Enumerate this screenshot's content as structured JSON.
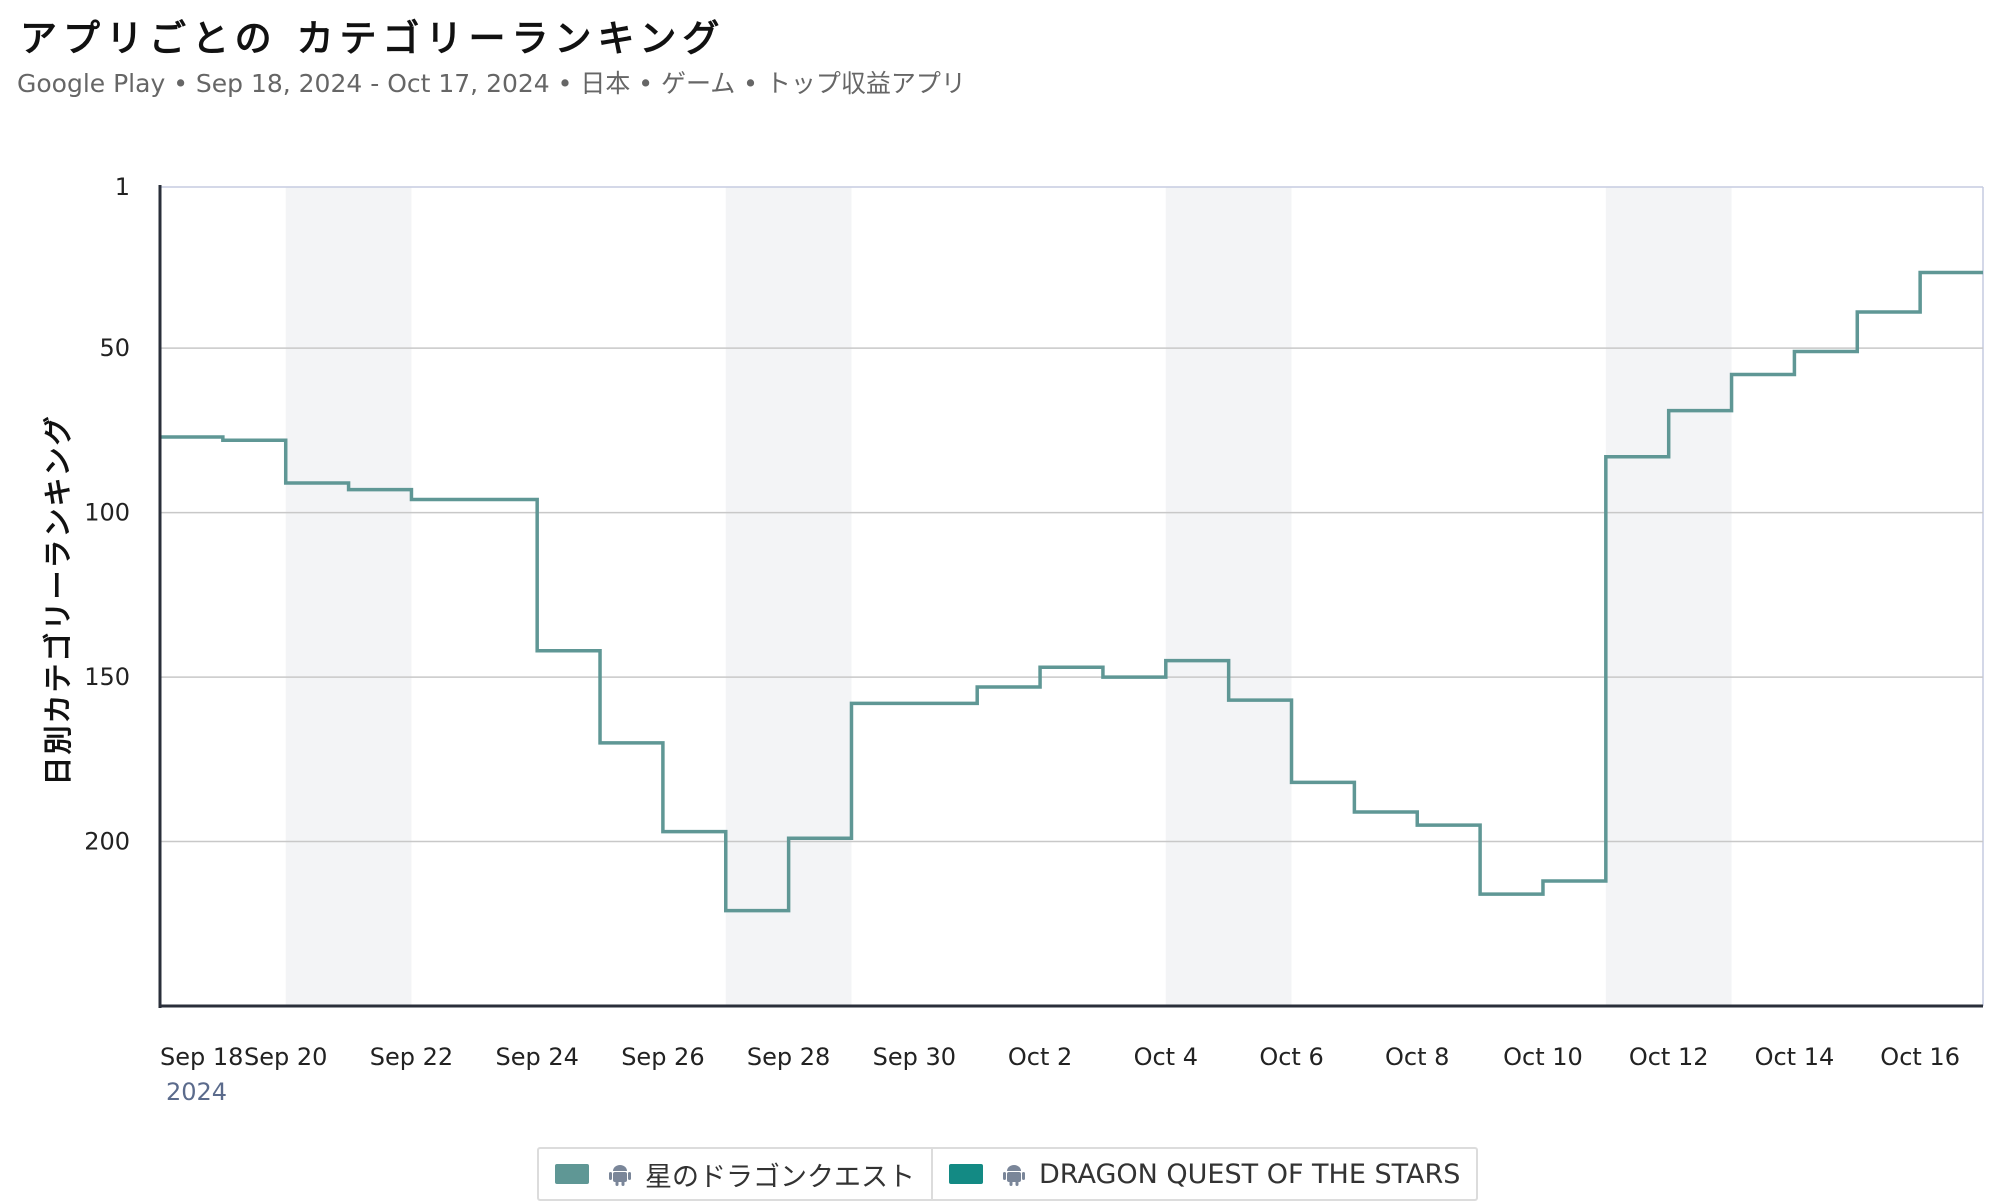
{
  "header": {
    "title": "アプリごとの カテゴリーランキング",
    "subtitle": "Google Play • Sep 18, 2024 - Oct 17, 2024 • 日本 • ゲーム • トップ収益アプリ"
  },
  "chart_data": {
    "type": "line",
    "step": true,
    "ylabel": "日別カテゴリーランキング",
    "y_inverted": true,
    "ylim": [
      1,
      250
    ],
    "yticks": [
      1,
      50,
      100,
      150,
      200
    ],
    "xlim": [
      "2024-09-18",
      "2024-10-17"
    ],
    "xticks": [
      "Sep 18",
      "Sep 20",
      "Sep 22",
      "Sep 24",
      "Sep 26",
      "Sep 28",
      "Sep 30",
      "Oct 2",
      "Oct 4",
      "Oct 6",
      "Oct 8",
      "Oct 10",
      "Oct 12",
      "Oct 14",
      "Oct 16"
    ],
    "year_label": "2024",
    "weekend_bands": [
      [
        "2024-09-20",
        "2024-09-22"
      ],
      [
        "2024-09-27",
        "2024-09-29"
      ],
      [
        "2024-10-04",
        "2024-10-06"
      ],
      [
        "2024-10-11",
        "2024-10-13"
      ]
    ],
    "grid": true,
    "legend_position": "bottom",
    "series": [
      {
        "name": "星のドラゴンクエスト",
        "color": "#5f9795",
        "icon": "android-icon",
        "x": [
          "2024-09-18",
          "2024-09-19",
          "2024-09-20",
          "2024-09-21",
          "2024-09-22",
          "2024-09-23",
          "2024-09-24",
          "2024-09-25",
          "2024-09-26",
          "2024-09-27",
          "2024-09-28",
          "2024-09-29",
          "2024-09-30",
          "2024-10-01",
          "2024-10-02",
          "2024-10-03",
          "2024-10-04",
          "2024-10-05",
          "2024-10-06",
          "2024-10-07",
          "2024-10-08",
          "2024-10-09",
          "2024-10-10",
          "2024-10-11",
          "2024-10-12",
          "2024-10-13",
          "2024-10-14",
          "2024-10-15",
          "2024-10-16"
        ],
        "values": [
          77,
          78,
          91,
          93,
          96,
          96,
          142,
          170,
          197,
          221,
          199,
          158,
          158,
          153,
          147,
          150,
          145,
          157,
          182,
          191,
          195,
          216,
          212,
          83,
          69,
          58,
          51,
          39,
          27
        ]
      },
      {
        "name": "DRAGON QUEST OF THE STARS",
        "color": "#138a84",
        "icon": "android-icon",
        "x": [],
        "values": []
      }
    ]
  }
}
